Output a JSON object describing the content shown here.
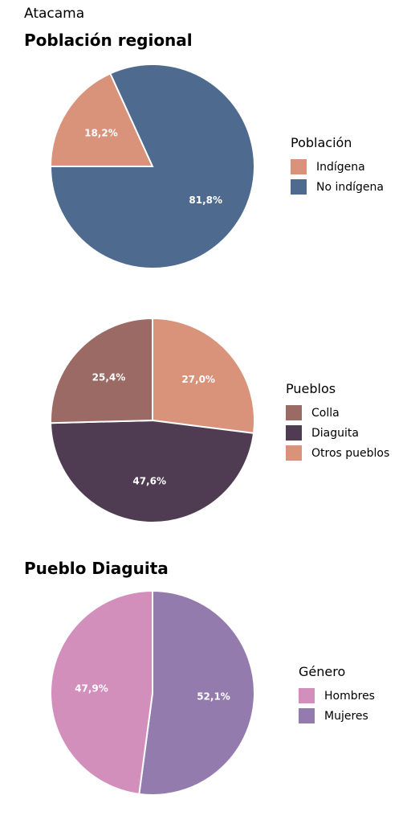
{
  "header": {
    "region": "Atacama",
    "title": "Población regional",
    "title2": "Pueblo Diaguita"
  },
  "legends": [
    {
      "title": "Población",
      "items": [
        {
          "label": "Indígena",
          "color": "#d8937a"
        },
        {
          "label": "No indígena",
          "color": "#4e6a8e"
        }
      ]
    },
    {
      "title": "Pueblos",
      "items": [
        {
          "label": "Colla",
          "color": "#9b6a64"
        },
        {
          "label": "Diaguita",
          "color": "#503c52"
        },
        {
          "label": "Otros pueblos",
          "color": "#d8937a"
        }
      ]
    },
    {
      "title": "Género",
      "items": [
        {
          "label": "Hombres",
          "color": "#d28fbc"
        },
        {
          "label": "Mujeres",
          "color": "#937cad"
        }
      ]
    }
  ],
  "chart_data": [
    {
      "type": "pie",
      "title": "Población regional",
      "slices": [
        {
          "label": "Indígena",
          "value": 18.2,
          "display": "18,2%",
          "color": "#d8937a"
        },
        {
          "label": "No indígena",
          "value": 81.8,
          "display": "81,8%",
          "color": "#4e6a8e"
        }
      ]
    },
    {
      "type": "pie",
      "slices": [
        {
          "label": "Otros pueblos",
          "value": 27.0,
          "display": "27,0%",
          "color": "#d8937a"
        },
        {
          "label": "Diaguita",
          "value": 47.6,
          "display": "47,6%",
          "color": "#503c52"
        },
        {
          "label": "Colla",
          "value": 25.4,
          "display": "25,4%",
          "color": "#9b6a64"
        }
      ]
    },
    {
      "type": "pie",
      "title": "Pueblo Diaguita",
      "slices": [
        {
          "label": "Mujeres",
          "value": 52.1,
          "display": "52,1%",
          "color": "#937cad"
        },
        {
          "label": "Hombres",
          "value": 47.9,
          "display": "47,9%",
          "color": "#d28fbc"
        }
      ]
    }
  ]
}
